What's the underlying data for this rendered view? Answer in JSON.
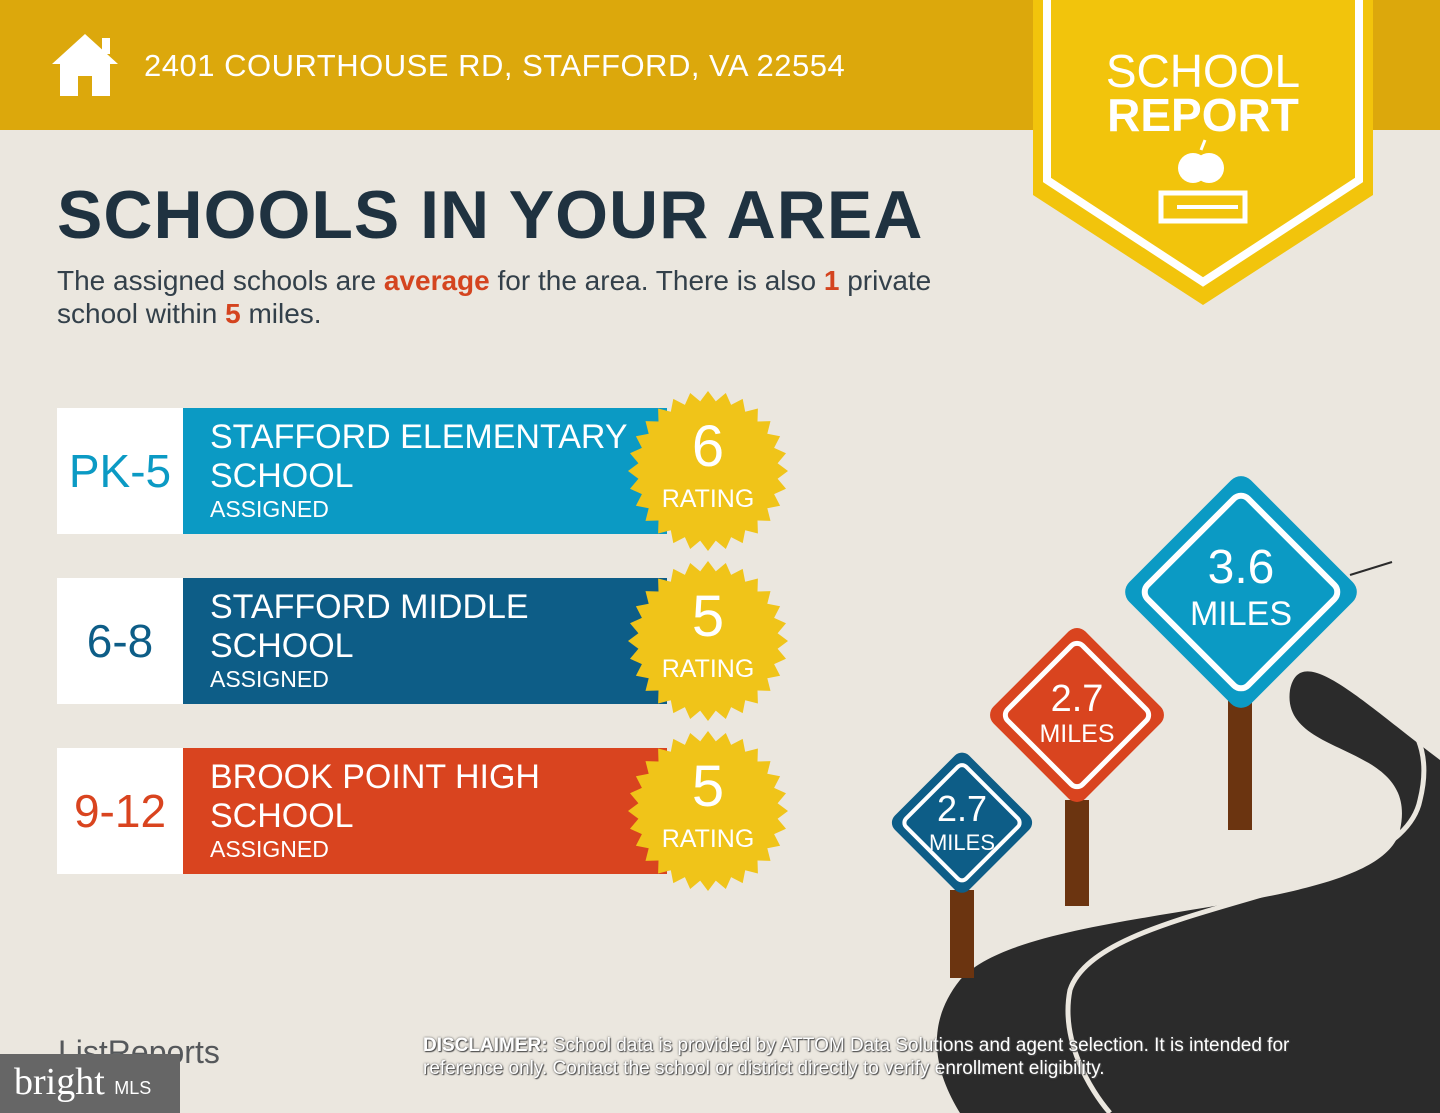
{
  "header": {
    "address": "2401 COURTHOUSE RD, STAFFORD, VA 22554",
    "icon": "house-icon"
  },
  "badge": {
    "line1": "SCHOOL",
    "line2": "REPORT",
    "icon": "apple-books-icon"
  },
  "title": "SCHOOLS IN YOUR AREA",
  "summary": {
    "p1": "The assigned schools are ",
    "quality": "average",
    "p2": " for the area. There is also ",
    "private_count": "1",
    "p3": " private school within ",
    "radius": "5",
    "p4": " miles."
  },
  "schools": [
    {
      "grade": "PK-5",
      "name": "STAFFORD ELEMENTARY SCHOOL",
      "status": "ASSIGNED",
      "rating": "6",
      "rating_label": "RATING",
      "color": "#0b9ac4"
    },
    {
      "grade": "6-8",
      "name": "STAFFORD MIDDLE SCHOOL",
      "status": "ASSIGNED",
      "rating": "5",
      "rating_label": "RATING",
      "color": "#0d5d87"
    },
    {
      "grade": "9-12",
      "name": "BROOK POINT HIGH SCHOOL",
      "status": "ASSIGNED",
      "rating": "5",
      "rating_label": "RATING",
      "color": "#d9441f"
    }
  ],
  "distances": [
    {
      "value": "2.7",
      "unit": "MILES",
      "color": "#0d5d87"
    },
    {
      "value": "2.7",
      "unit": "MILES",
      "color": "#d9441f"
    },
    {
      "value": "3.6",
      "unit": "MILES",
      "color": "#0b9ac4"
    }
  ],
  "footer": {
    "logo": "ListReports",
    "disclaimer_label": "DISCLAIMER:",
    "disclaimer": " School data is provided by ATTOM Data Solutions and agent selection. It is intended for reference only. Contact the school or district directly to verify enrollment eligibility.",
    "bright": "bright",
    "mls": "MLS"
  }
}
